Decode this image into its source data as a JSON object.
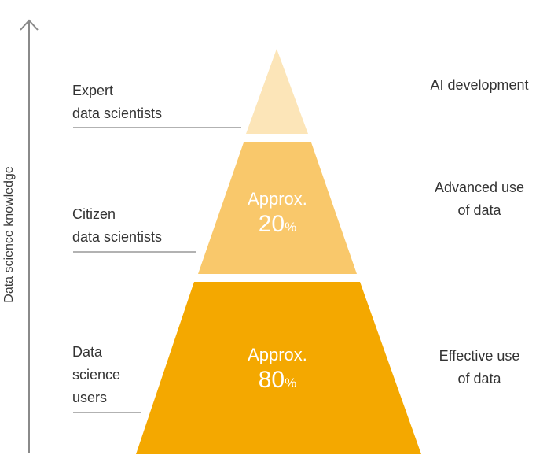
{
  "axis": {
    "title": "Data science knowledge"
  },
  "tiers": [
    {
      "id": "expert",
      "left_label": [
        "Expert",
        "data scientists"
      ],
      "right_label": [
        "AI development"
      ],
      "percent_label": "",
      "percent_value": "",
      "percent_unit": "",
      "color": "#FCE5B8"
    },
    {
      "id": "citizen",
      "left_label": [
        "Citizen",
        "data scientists"
      ],
      "right_label": [
        "Advanced use",
        "of data"
      ],
      "percent_label": "Approx.",
      "percent_value": "20",
      "percent_unit": "%",
      "color": "#F9C86B"
    },
    {
      "id": "users",
      "left_label": [
        "Data",
        "science",
        "users"
      ],
      "right_label": [
        "Effective use",
        "of data"
      ],
      "percent_label": "Approx.",
      "percent_value": "80",
      "percent_unit": "%",
      "color": "#F4A800"
    }
  ],
  "colors": {
    "axis": "#8a8a8a",
    "leader": "#666666"
  }
}
